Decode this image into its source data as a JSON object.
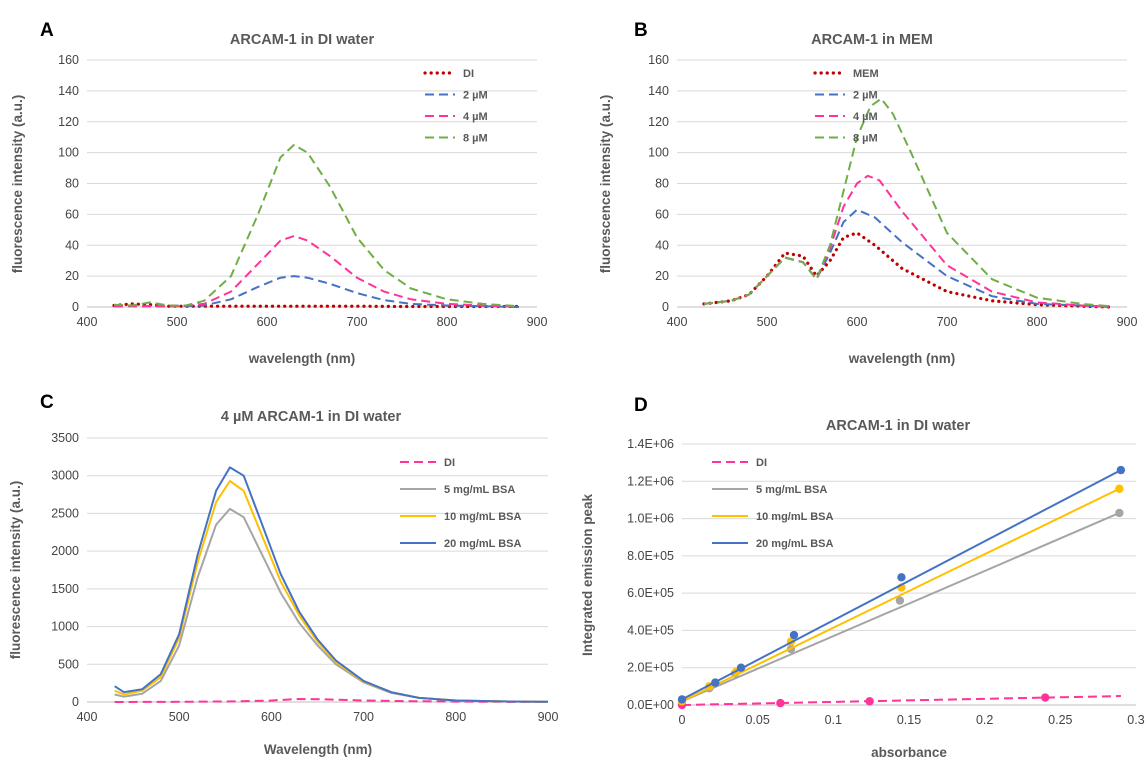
{
  "chart_data": [
    {
      "id": "A",
      "type": "line",
      "panel_label": "A",
      "title": "ARCAM-1 in DI water",
      "xlabel": "wavelength (nm)",
      "ylabel": "fluorescence intensity (a.u.)",
      "xlim": [
        400,
        900
      ],
      "ylim": [
        0,
        160
      ],
      "xticks": [
        400,
        500,
        600,
        700,
        800,
        900
      ],
      "yticks": [
        0,
        20,
        40,
        60,
        80,
        100,
        120,
        140,
        160
      ],
      "legend_position": "top-right",
      "grid": true,
      "series": [
        {
          "name": "DI",
          "color": "#c00000",
          "style": "dotted",
          "x": [
            430,
            450,
            470,
            490,
            510,
            550,
            600,
            650,
            700,
            750,
            800,
            850,
            880
          ],
          "y": [
            1,
            2,
            1.5,
            0.5,
            0.5,
            0.5,
            0.5,
            0.5,
            0.5,
            0.3,
            0.3,
            0.3,
            0.3
          ]
        },
        {
          "name": "2 µM",
          "color": "#4472c4",
          "style": "dashed",
          "x": [
            430,
            460,
            500,
            530,
            560,
            590,
            615,
            630,
            645,
            670,
            700,
            730,
            760,
            800,
            840,
            880
          ],
          "y": [
            0.5,
            0.5,
            0.5,
            1,
            5,
            13,
            19,
            20,
            19,
            15,
            9,
            4.5,
            2,
            1,
            0.5,
            0
          ]
        },
        {
          "name": "4 µM",
          "color": "#ff3399",
          "style": "dashed",
          "x": [
            430,
            460,
            500,
            530,
            560,
            590,
            615,
            630,
            645,
            670,
            700,
            730,
            760,
            800,
            840,
            880
          ],
          "y": [
            0.5,
            0.5,
            0.5,
            2,
            10,
            28,
            43,
            46,
            43,
            33,
            19,
            10,
            5,
            2,
            1,
            0
          ]
        },
        {
          "name": "8 µM",
          "color": "#70ad47",
          "style": "dashed",
          "x": [
            430,
            450,
            470,
            490,
            510,
            530,
            560,
            590,
            615,
            630,
            645,
            670,
            700,
            730,
            760,
            800,
            840,
            880
          ],
          "y": [
            1.5,
            1,
            3,
            1,
            1,
            4,
            20,
            60,
            97,
            105,
            100,
            78,
            45,
            24,
            12,
            5,
            2,
            0.5
          ]
        }
      ]
    },
    {
      "id": "B",
      "type": "line",
      "panel_label": "B",
      "title": "ARCAM-1 in MEM",
      "xlabel": "wavelength (nm)",
      "ylabel": "fluorescence intensity (a.u.)",
      "xlim": [
        400,
        900
      ],
      "ylim": [
        0,
        160
      ],
      "xticks": [
        400,
        500,
        600,
        700,
        800,
        900
      ],
      "yticks": [
        0,
        20,
        40,
        60,
        80,
        100,
        120,
        140,
        160
      ],
      "legend_position": "top-right",
      "grid": true,
      "series": [
        {
          "name": "MEM",
          "color": "#c00000",
          "style": "dotted",
          "x": [
            430,
            460,
            480,
            500,
            520,
            540,
            555,
            570,
            585,
            600,
            620,
            650,
            700,
            750,
            800,
            850,
            880
          ],
          "y": [
            2,
            4,
            8,
            20,
            35,
            33,
            20,
            30,
            45,
            48,
            40,
            25,
            10,
            4,
            1.5,
            0.5,
            0
          ]
        },
        {
          "name": "2 µM",
          "color": "#4472c4",
          "style": "dashed",
          "x": [
            430,
            460,
            480,
            500,
            520,
            540,
            555,
            570,
            585,
            600,
            620,
            650,
            700,
            750,
            800,
            850,
            880
          ],
          "y": [
            2,
            4,
            8,
            20,
            32,
            29,
            18,
            35,
            55,
            63,
            58,
            42,
            20,
            7,
            2,
            1,
            0
          ]
        },
        {
          "name": "4 µM",
          "color": "#ff3399",
          "style": "dashed",
          "x": [
            430,
            460,
            480,
            500,
            520,
            540,
            555,
            570,
            585,
            600,
            612,
            625,
            650,
            700,
            750,
            800,
            850,
            880
          ],
          "y": [
            2,
            4,
            8,
            20,
            32,
            29,
            18,
            38,
            65,
            80,
            85,
            82,
            62,
            27,
            10,
            3,
            1,
            0
          ]
        },
        {
          "name": "8 µM",
          "color": "#70ad47",
          "style": "dashed",
          "x": [
            430,
            460,
            480,
            500,
            520,
            540,
            555,
            570,
            585,
            600,
            615,
            627,
            640,
            660,
            700,
            750,
            800,
            850,
            880
          ],
          "y": [
            2,
            4,
            8,
            20,
            32,
            29,
            18,
            40,
            75,
            110,
            130,
            135,
            125,
            100,
            48,
            18,
            6,
            2,
            0.5
          ]
        }
      ]
    },
    {
      "id": "C",
      "type": "line",
      "panel_label": "C",
      "title": "4 µM ARCAM-1 in DI water",
      "xlabel": "Wavelength (nm)",
      "ylabel": "fluorescence intensity (a.u.)",
      "xlim": [
        400,
        900
      ],
      "ylim": [
        0,
        3500
      ],
      "xticks": [
        400,
        500,
        600,
        700,
        800,
        900
      ],
      "yticks": [
        0,
        500,
        1000,
        1500,
        2000,
        2500,
        3000,
        3500
      ],
      "legend_position": "top-right",
      "grid": true,
      "series": [
        {
          "name": "DI",
          "color": "#ff3399",
          "style": "dashed",
          "x": [
            430,
            500,
            560,
            600,
            630,
            660,
            700,
            750,
            800,
            850,
            900
          ],
          "y": [
            0,
            2,
            8,
            20,
            40,
            35,
            20,
            10,
            5,
            2,
            0
          ]
        },
        {
          "name": "5 mg/mL BSA",
          "color": "#a5a5a5",
          "style": "solid",
          "x": [
            430,
            440,
            460,
            480,
            500,
            520,
            540,
            555,
            570,
            590,
            610,
            630,
            650,
            670,
            700,
            730,
            760,
            800,
            850,
            900
          ],
          "y": [
            100,
            70,
            110,
            280,
            750,
            1650,
            2350,
            2560,
            2450,
            1950,
            1450,
            1050,
            750,
            500,
            260,
            120,
            55,
            20,
            8,
            3
          ]
        },
        {
          "name": "10 mg/mL BSA",
          "color": "#ffc000",
          "style": "solid",
          "x": [
            430,
            440,
            460,
            480,
            500,
            520,
            540,
            555,
            570,
            590,
            610,
            630,
            650,
            670,
            700,
            730,
            760,
            800,
            850,
            900
          ],
          "y": [
            150,
            100,
            150,
            330,
            850,
            1850,
            2650,
            2930,
            2800,
            2200,
            1600,
            1150,
            800,
            530,
            270,
            130,
            55,
            20,
            8,
            3
          ]
        },
        {
          "name": "20 mg/mL BSA",
          "color": "#4472c4",
          "style": "solid",
          "x": [
            430,
            440,
            460,
            480,
            500,
            520,
            540,
            555,
            570,
            590,
            610,
            630,
            650,
            670,
            700,
            730,
            760,
            800,
            850,
            900
          ],
          "y": [
            210,
            130,
            170,
            370,
            900,
            1950,
            2800,
            3110,
            3000,
            2350,
            1700,
            1200,
            830,
            550,
            280,
            130,
            55,
            20,
            8,
            3
          ]
        }
      ]
    },
    {
      "id": "D",
      "type": "scatter",
      "panel_label": "D",
      "title": "ARCAM-1 in DI water",
      "xlabel": "absorbance",
      "ylabel": "Integrated emission peak",
      "xlim": [
        0,
        0.3
      ],
      "ylim": [
        0,
        1400000
      ],
      "xticks": [
        0,
        0.05,
        0.1,
        0.15,
        0.2,
        0.25,
        0.3
      ],
      "xticklabels": [
        "0",
        "0.05",
        "0.1",
        "0.15",
        "0.2",
        "0.25",
        "0.3"
      ],
      "yticks": [
        0,
        200000,
        400000,
        600000,
        800000,
        1000000,
        1200000,
        1400000
      ],
      "yticklabels": [
        "0.0E+00",
        "2.0E+05",
        "4.0E+05",
        "6.0E+05",
        "8.0E+05",
        "1.0E+06",
        "1.2E+06",
        "1.4E+06"
      ],
      "legend_position": "top-left",
      "grid": true,
      "series": [
        {
          "name": "DI",
          "color": "#ff3399",
          "style": "dashed",
          "points": [
            [
              0,
              0
            ],
            [
              0.065,
              10000
            ],
            [
              0.124,
              20000
            ],
            [
              0.24,
              40000
            ]
          ],
          "fit": [
            [
              0,
              0
            ],
            [
              0.29,
              48000
            ]
          ]
        },
        {
          "name": "5 mg/mL BSA",
          "color": "#a5a5a5",
          "style": "solid",
          "points": [
            [
              0,
              20000
            ],
            [
              0.018,
              90000
            ],
            [
              0.035,
              170000
            ],
            [
              0.072,
              300000
            ],
            [
              0.144,
              560000
            ],
            [
              0.289,
              1030000
            ]
          ],
          "fit": [
            [
              0,
              20000
            ],
            [
              0.289,
              1030000
            ]
          ]
        },
        {
          "name": "10 mg/mL BSA",
          "color": "#ffc000",
          "style": "solid",
          "points": [
            [
              0,
              20000
            ],
            [
              0.018,
              100000
            ],
            [
              0.036,
              180000
            ],
            [
              0.072,
              340000
            ],
            [
              0.145,
              630000
            ],
            [
              0.289,
              1160000
            ]
          ],
          "fit": [
            [
              0,
              20000
            ],
            [
              0.289,
              1160000
            ]
          ]
        },
        {
          "name": "20 mg/mL BSA",
          "color": "#4472c4",
          "style": "solid",
          "points": [
            [
              0,
              30000
            ],
            [
              0.022,
              120000
            ],
            [
              0.039,
              200000
            ],
            [
              0.074,
              375000
            ],
            [
              0.145,
              685000
            ],
            [
              0.29,
              1260000
            ]
          ],
          "fit": [
            [
              0,
              30000
            ],
            [
              0.29,
              1260000
            ]
          ]
        }
      ]
    }
  ]
}
